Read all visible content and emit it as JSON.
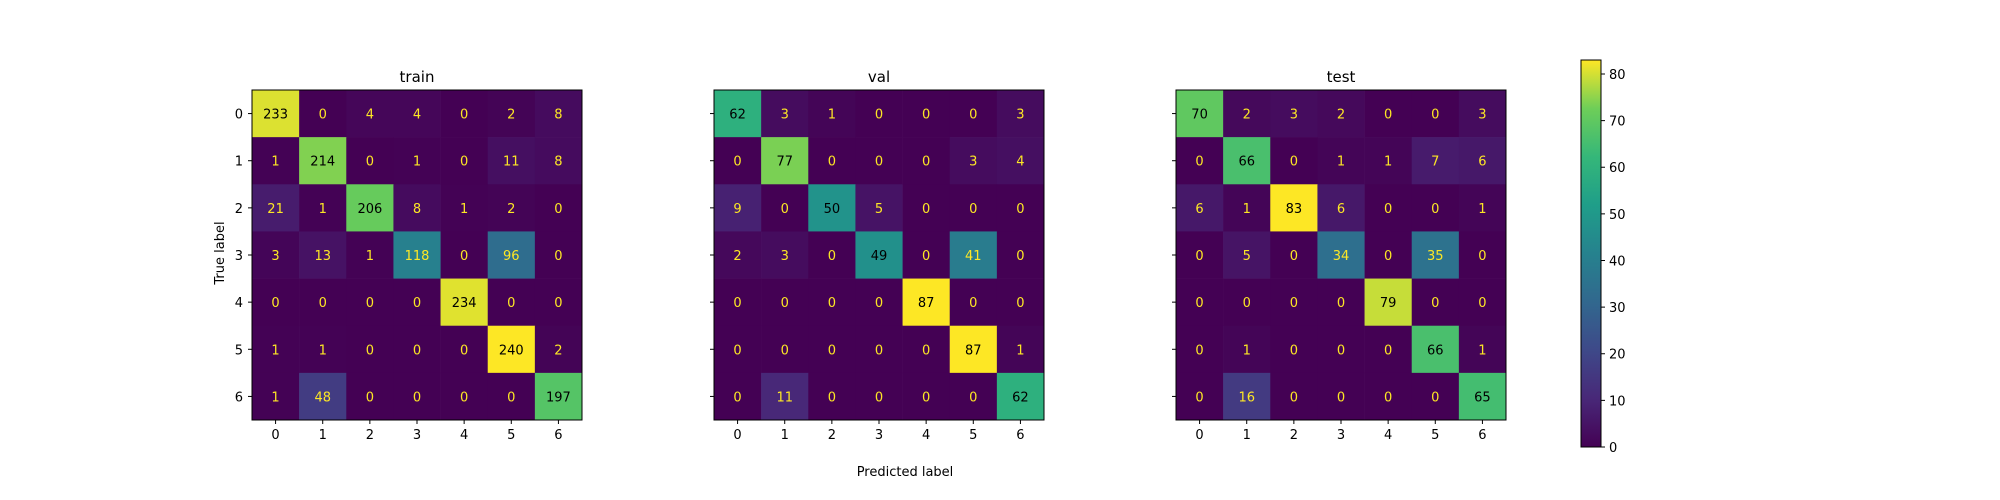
{
  "figure": {
    "xlabel": "Predicted label",
    "ylabel": "True label"
  },
  "colorbar": {
    "colormap": "viridis",
    "vmin": 0,
    "vmax": 83,
    "ticks": [
      "0",
      "10",
      "20",
      "30",
      "40",
      "50",
      "60",
      "70",
      "80"
    ]
  },
  "chart_data": [
    {
      "type": "heatmap",
      "title": "train",
      "x_categories": [
        "0",
        "1",
        "2",
        "3",
        "4",
        "5",
        "6"
      ],
      "y_categories": [
        "0",
        "1",
        "2",
        "3",
        "4",
        "5",
        "6"
      ],
      "values": [
        [
          233,
          0,
          4,
          4,
          0,
          2,
          8
        ],
        [
          1,
          214,
          0,
          1,
          0,
          11,
          8
        ],
        [
          21,
          1,
          206,
          8,
          1,
          2,
          0
        ],
        [
          3,
          13,
          1,
          118,
          0,
          96,
          0
        ],
        [
          0,
          0,
          0,
          0,
          234,
          0,
          0
        ],
        [
          1,
          1,
          0,
          0,
          0,
          240,
          2
        ],
        [
          1,
          48,
          0,
          0,
          0,
          0,
          197
        ]
      ]
    },
    {
      "type": "heatmap",
      "title": "val",
      "x_categories": [
        "0",
        "1",
        "2",
        "3",
        "4",
        "5",
        "6"
      ],
      "y_categories": [
        "0",
        "1",
        "2",
        "3",
        "4",
        "5",
        "6"
      ],
      "values": [
        [
          62,
          3,
          1,
          0,
          0,
          0,
          3
        ],
        [
          0,
          77,
          0,
          0,
          0,
          3,
          4
        ],
        [
          9,
          0,
          50,
          5,
          0,
          0,
          0
        ],
        [
          2,
          3,
          0,
          49,
          0,
          41,
          0
        ],
        [
          0,
          0,
          0,
          0,
          87,
          0,
          0
        ],
        [
          0,
          0,
          0,
          0,
          0,
          87,
          1
        ],
        [
          0,
          11,
          0,
          0,
          0,
          0,
          62
        ]
      ]
    },
    {
      "type": "heatmap",
      "title": "test",
      "x_categories": [
        "0",
        "1",
        "2",
        "3",
        "4",
        "5",
        "6"
      ],
      "y_categories": [
        "0",
        "1",
        "2",
        "3",
        "4",
        "5",
        "6"
      ],
      "values": [
        [
          70,
          2,
          3,
          2,
          0,
          0,
          3
        ],
        [
          0,
          66,
          0,
          1,
          1,
          7,
          6
        ],
        [
          6,
          1,
          83,
          6,
          0,
          0,
          1
        ],
        [
          0,
          5,
          0,
          34,
          0,
          35,
          0
        ],
        [
          0,
          0,
          0,
          0,
          79,
          0,
          0
        ],
        [
          0,
          1,
          0,
          0,
          0,
          66,
          1
        ],
        [
          0,
          16,
          0,
          0,
          0,
          0,
          65
        ]
      ]
    }
  ]
}
